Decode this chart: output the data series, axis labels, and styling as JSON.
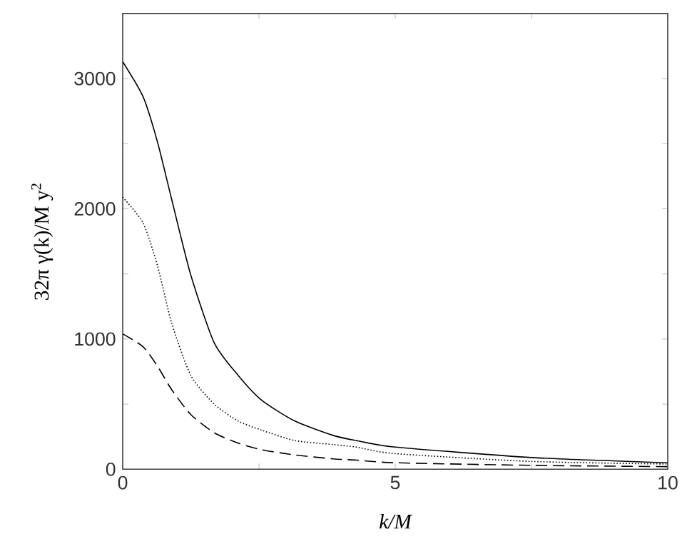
{
  "chart_data": {
    "type": "line",
    "xlabel": "k/M",
    "ylabel": "32π γ(k)/M y$^{2}$",
    "x": [
      0,
      0.375,
      0.64,
      0.9,
      1.25,
      1.68,
      2.12,
      2.55,
      3.16,
      3.86,
      4.29,
      5,
      7.5,
      10
    ],
    "series": [
      {
        "color": "#000000",
        "line_style": "solid",
        "values": [
          3130,
          2860,
          2510,
          2070,
          1490,
          970,
          720,
          530,
          370,
          260,
          220,
          170,
          90,
          50
        ]
      },
      {
        "color": "#000000",
        "line_style": "dotted",
        "values": [
          2090,
          1890,
          1560,
          1120,
          720,
          500,
          370,
          300,
          220,
          190,
          170,
          120,
          60,
          40
        ]
      },
      {
        "color": "#000000",
        "line_style": "dashed",
        "values": [
          1040,
          940,
          790,
          610,
          420,
          280,
          200,
          150,
          110,
          80,
          70,
          50,
          30,
          20
        ]
      }
    ],
    "xlim": [
      0,
      10
    ],
    "ylim": [
      0,
      3500
    ],
    "xticks": [
      0,
      {
        "value": 2.5,
        "label": null
      },
      5,
      {
        "value": 7.5,
        "label": null
      },
      10
    ],
    "yticks": [
      0,
      {
        "value": 500,
        "label": null
      },
      1000,
      {
        "value": 1500,
        "label": null
      },
      2000,
      {
        "value": 2500,
        "label": null
      },
      3000
    ],
    "grid": false,
    "marker": "none"
  }
}
